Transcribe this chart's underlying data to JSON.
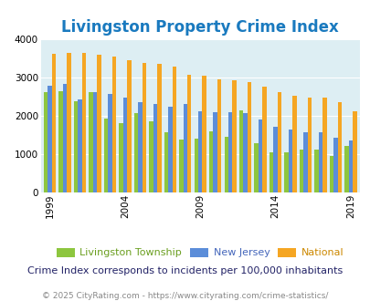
{
  "title": "Livingston Property Crime Index",
  "years": [
    1999,
    2000,
    2001,
    2002,
    2003,
    2004,
    2005,
    2006,
    2007,
    2008,
    2009,
    2010,
    2011,
    2012,
    2013,
    2014,
    2015,
    2016,
    2017,
    2018,
    2019
  ],
  "livingston": [
    2620,
    2650,
    2380,
    2620,
    1920,
    1800,
    2080,
    1870,
    1580,
    1390,
    1400,
    1600,
    1450,
    2150,
    1300,
    1040,
    1050,
    1130,
    1130,
    960,
    1210
  ],
  "nj": [
    2780,
    2830,
    2440,
    2620,
    2560,
    2470,
    2360,
    2310,
    2230,
    2310,
    2110,
    2090,
    2090,
    2080,
    1900,
    1720,
    1640,
    1570,
    1570,
    1430,
    1350
  ],
  "national": [
    3620,
    3650,
    3640,
    3600,
    3540,
    3450,
    3390,
    3360,
    3290,
    3060,
    3050,
    2960,
    2930,
    2880,
    2770,
    2620,
    2520,
    2480,
    2470,
    2360,
    2110
  ],
  "livingston_color": "#8dc63f",
  "nj_color": "#5b8dd9",
  "national_color": "#f5a623",
  "bg_color": "#ddeef3",
  "ylim": [
    0,
    4000
  ],
  "yticks": [
    0,
    1000,
    2000,
    3000,
    4000
  ],
  "xlabel_ticks": [
    1999,
    2004,
    2009,
    2014,
    2019
  ],
  "subtitle": "Crime Index corresponds to incidents per 100,000 inhabitants",
  "footer": "© 2025 CityRating.com - https://www.cityrating.com/crime-statistics/",
  "legend_labels": [
    "Livingston Township",
    "New Jersey",
    "National"
  ],
  "legend_colors": [
    "#6a9e1f",
    "#4466bb",
    "#cc8800"
  ],
  "title_color": "#1a7abf",
  "subtitle_color": "#222266",
  "footer_color": "#888888",
  "title_fontsize": 12,
  "subtitle_fontsize": 8,
  "footer_fontsize": 6.5,
  "tick_fontsize": 7.5,
  "legend_fontsize": 8
}
